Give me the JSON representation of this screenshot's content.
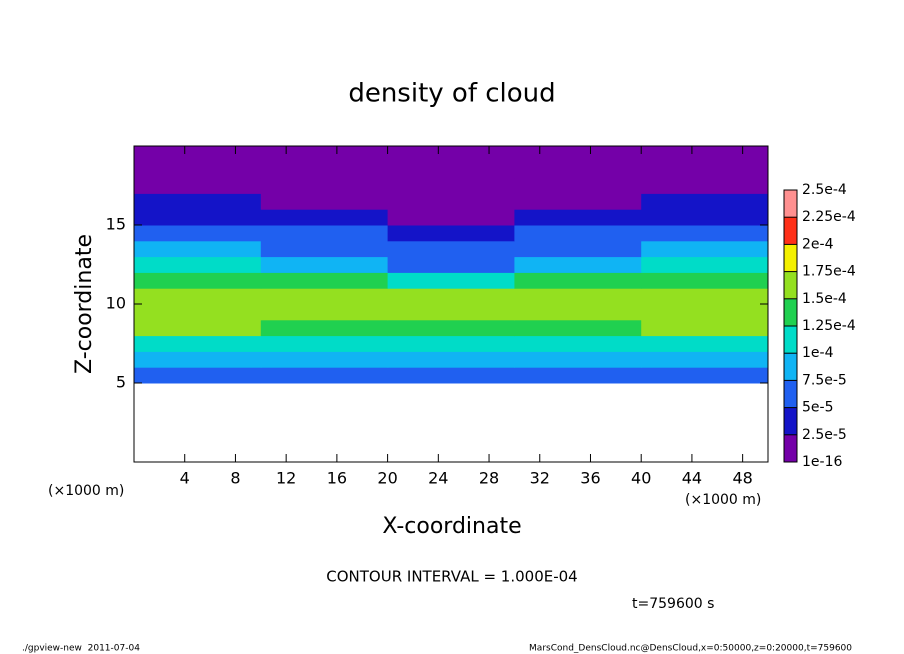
{
  "chart_data": {
    "type": "contour",
    "title": "density of cloud",
    "x_label": "X-coordinate",
    "y_label": "Z-coordinate",
    "x_unit": "(×1000 m)",
    "y_unit": "(×1000 m)",
    "contour_note": "CONTOUR INTERVAL = 1.000E-04",
    "time_label": "t=759600 s",
    "footer_left": "./gpview-new  2011-07-04",
    "footer_right": "MarsCond_DensCloud.nc@DensCloud,x=0:50000,z=0:20000,t=759600",
    "xlim": [
      0,
      50
    ],
    "ylim": [
      0,
      20
    ],
    "xticks": [
      4,
      8,
      12,
      16,
      20,
      24,
      28,
      32,
      36,
      40,
      44,
      48
    ],
    "yticks": [
      5,
      10,
      15
    ],
    "x": [
      5,
      15,
      25,
      35,
      45
    ],
    "z": [
      5.5,
      6.5,
      7.5,
      8.5,
      9.5,
      10.5,
      11.5,
      12.5,
      13.5,
      14.5,
      15.5,
      16.5,
      17.5,
      18.5,
      19.5
    ],
    "values": [
      [
        6e-05,
        6e-05,
        6e-05,
        6e-05,
        6e-05
      ],
      [
        9e-05,
        9e-05,
        9e-05,
        9e-05,
        9e-05
      ],
      [
        0.00012,
        0.00012,
        0.000115,
        0.00012,
        0.00012
      ],
      [
        0.00015,
        0.000145,
        0.000145,
        0.000145,
        0.00015
      ],
      [
        0.00017,
        0.000165,
        0.000165,
        0.000165,
        0.00017
      ],
      [
        0.000165,
        0.00016,
        0.000155,
        0.00016,
        0.000165
      ],
      [
        0.00014,
        0.00013,
        0.00011,
        0.00013,
        0.00014
      ],
      [
        0.000105,
        9e-05,
        7e-05,
        9e-05,
        0.000105
      ],
      [
        8e-05,
        7e-05,
        5e-05,
        7e-05,
        8e-05
      ],
      [
        6e-05,
        5e-05,
        3e-05,
        5e-05,
        6e-05
      ],
      [
        4e-05,
        3.5e-05,
        2e-05,
        3.5e-05,
        4e-05
      ],
      [
        2.5e-05,
        2e-05,
        1.5e-05,
        2e-05,
        2.5e-05
      ],
      [
        1e-05,
        1e-05,
        8e-06,
        1e-05,
        1e-05
      ],
      [
        5e-06,
        5e-06,
        5e-06,
        5e-06,
        5e-06
      ],
      [
        1e-06,
        1e-06,
        1e-06,
        1e-06,
        1e-06
      ]
    ],
    "colorbar": {
      "levels": [
        {
          "value": 1e-16,
          "label": "1e-16"
        },
        {
          "value": 2.5e-05,
          "label": "2.5e-5"
        },
        {
          "value": 5e-05,
          "label": "5e-5"
        },
        {
          "value": 7.5e-05,
          "label": "7.5e-5"
        },
        {
          "value": 0.0001,
          "label": "1e-4"
        },
        {
          "value": 0.000125,
          "label": "1.25e-4"
        },
        {
          "value": 0.00015,
          "label": "1.5e-4"
        },
        {
          "value": 0.000175,
          "label": "1.75e-4"
        },
        {
          "value": 0.0002,
          "label": "2e-4"
        },
        {
          "value": 0.000225,
          "label": "2.25e-4"
        },
        {
          "value": 0.00025,
          "label": "2.5e-4"
        }
      ],
      "colors": [
        "#7400a8",
        "#1414c8",
        "#2060f0",
        "#10b4f4",
        "#00dcc8",
        "#20d050",
        "#94e020",
        "#f4f000",
        "#ff3018",
        "#ff9090"
      ]
    }
  }
}
